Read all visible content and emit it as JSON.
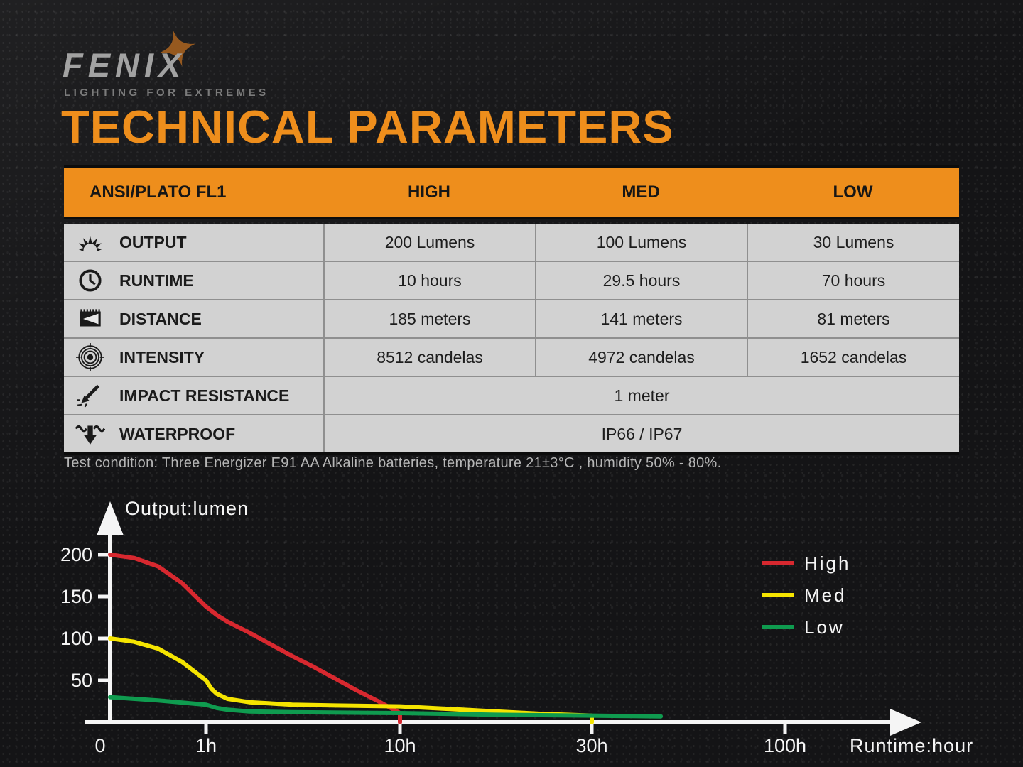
{
  "brand": {
    "logo_text": "FENIX",
    "tagline": "LIGHTING FOR EXTREMES"
  },
  "page": {
    "title": "TECHNICAL PARAMETERS",
    "test_condition": "Test condition: Three Energizer E91 AA Alkaline batteries, temperature 21±3°C , humidity 50% - 80%."
  },
  "table": {
    "header": {
      "label": "ANSI/PLATO FL1",
      "columns": [
        "HIGH",
        "MED",
        "LOW"
      ]
    },
    "rows": [
      {
        "icon": "output-icon",
        "label": "OUTPUT",
        "values": [
          "200 Lumens",
          "100 Lumens",
          "30 Lumens"
        ]
      },
      {
        "icon": "runtime-icon",
        "label": "RUNTIME",
        "values": [
          "10 hours",
          "29.5 hours",
          "70 hours"
        ]
      },
      {
        "icon": "distance-icon",
        "label": "DISTANCE",
        "values": [
          "185 meters",
          "141 meters",
          "81 meters"
        ]
      },
      {
        "icon": "intensity-icon",
        "label": "INTENSITY",
        "values": [
          "8512 candelas",
          "4972 candelas",
          "1652 candelas"
        ]
      },
      {
        "icon": "impact-icon",
        "label": "IMPACT RESISTANCE",
        "values": [
          "1 meter"
        ],
        "merged": true
      },
      {
        "icon": "waterproof-icon",
        "label": "WATERPROOF",
        "values": [
          "IP66 / IP67"
        ],
        "merged": true
      }
    ]
  },
  "chart_data": {
    "type": "line",
    "title": "",
    "xlabel": "Runtime:hour",
    "ylabel": "Output:lumen",
    "x_ticks": [
      {
        "label": "0",
        "h": 0
      },
      {
        "label": "1h",
        "h": 1
      },
      {
        "label": "10h",
        "h": 10
      },
      {
        "label": "30h",
        "h": 30
      },
      {
        "label": "100h",
        "h": 100
      }
    ],
    "y_ticks": [
      50,
      100,
      150,
      200
    ],
    "ylim": [
      0,
      210
    ],
    "grid": false,
    "legend_position": "right",
    "series": [
      {
        "name": "High",
        "color": "#d7282f",
        "points": [
          [
            0,
            200
          ],
          [
            0.25,
            196
          ],
          [
            0.5,
            186
          ],
          [
            0.75,
            166
          ],
          [
            1,
            138
          ],
          [
            1.5,
            128
          ],
          [
            2,
            120
          ],
          [
            3,
            107
          ],
          [
            4,
            93
          ],
          [
            5,
            79
          ],
          [
            6,
            66
          ],
          [
            7,
            52
          ],
          [
            8,
            38
          ],
          [
            9,
            25
          ],
          [
            10,
            11
          ],
          [
            10,
            0
          ]
        ]
      },
      {
        "name": "Med",
        "color": "#f5e400",
        "points": [
          [
            0,
            100
          ],
          [
            0.25,
            96
          ],
          [
            0.5,
            88
          ],
          [
            0.75,
            72
          ],
          [
            1,
            50
          ],
          [
            1.25,
            40
          ],
          [
            1.5,
            34
          ],
          [
            2,
            28
          ],
          [
            3,
            24
          ],
          [
            5,
            21
          ],
          [
            7,
            20
          ],
          [
            10,
            19
          ],
          [
            15,
            16
          ],
          [
            20,
            13
          ],
          [
            25,
            10
          ],
          [
            30,
            8
          ],
          [
            30,
            0
          ]
        ]
      },
      {
        "name": "Low",
        "color": "#0f9b4f",
        "points": [
          [
            0,
            30
          ],
          [
            0.5,
            26
          ],
          [
            1,
            21
          ],
          [
            1.5,
            17
          ],
          [
            2,
            15
          ],
          [
            3,
            13
          ],
          [
            5,
            12
          ],
          [
            10,
            11
          ],
          [
            20,
            9
          ],
          [
            30,
            8
          ],
          [
            40,
            7.5
          ],
          [
            55,
            7
          ]
        ]
      }
    ]
  },
  "colors": {
    "accent_orange": "#EE8E1C",
    "table_row_bg": "#d2d2d2",
    "grid_line": "#8f8f8f",
    "axis": "#f5f5f5",
    "high": "#d7282f",
    "med": "#f5e400",
    "low": "#0f9b4f"
  }
}
